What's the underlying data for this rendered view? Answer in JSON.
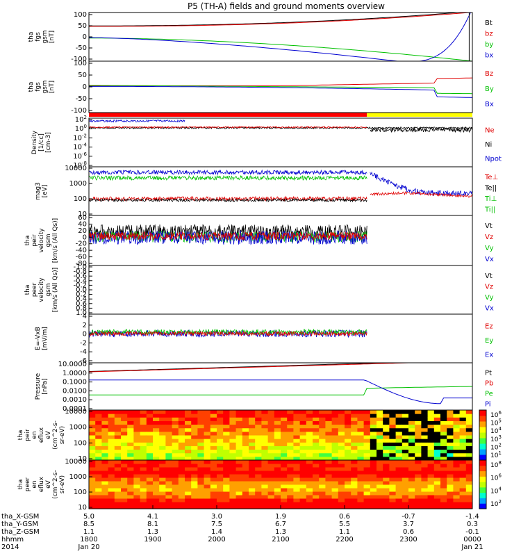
{
  "chart_data": {
    "type": "line",
    "title": "P5 (TH-A) fields and ground moments overview",
    "x_range": [
      "2014-01-20 18:00",
      "2014-01-21 00:00"
    ],
    "panels": [
      {
        "ylabel_lines": [
          "tha",
          "fgs",
          "gsm",
          "[nT]"
        ],
        "yticks": [
          -100,
          -50,
          0,
          50,
          100
        ],
        "ylim": [
          -100,
          100
        ],
        "legend": [
          {
            "label": "Bt",
            "color": "#000000"
          },
          {
            "label": "bz",
            "color": "#e00000"
          },
          {
            "label": "by",
            "color": "#00c000"
          },
          {
            "label": "bx",
            "color": "#0000d0"
          }
        ]
      },
      {
        "ylabel_lines": [
          "tha",
          "fgs",
          "gsm",
          "[nT]"
        ],
        "yticks": [
          -100,
          -50,
          0,
          50,
          100
        ],
        "ylim": [
          -120,
          110
        ],
        "legend": [
          {
            "label": "Bz",
            "color": "#e00000"
          },
          {
            "label": "By",
            "color": "#00c000"
          },
          {
            "label": "Bx",
            "color": "#0000d0"
          }
        ]
      },
      {
        "ylabel_lines": [
          "Density",
          "[1/cc]",
          "[cm-3]"
        ],
        "yticks": [
          "10^2",
          "10^0",
          "10^-2",
          "10^-4",
          "10^-6",
          "10^-8"
        ],
        "scale": "log",
        "legend": [
          {
            "label": "Ne",
            "color": "#e00000"
          },
          {
            "label": "Ni",
            "color": "#000000"
          },
          {
            "label": "Npot",
            "color": "#0000d0"
          }
        ]
      },
      {
        "ylabel_lines": [
          "mag3",
          "[eV]"
        ],
        "yticks": [
          "10000",
          "1000",
          "100",
          "10"
        ],
        "scale": "log",
        "legend": [
          {
            "label": "Te⊥",
            "color": "#e00000"
          },
          {
            "label": "Te||",
            "color": "#000000"
          },
          {
            "label": "Ti⊥",
            "color": "#00c000"
          },
          {
            "label": "Ti||",
            "color": "#00c000"
          }
        ]
      },
      {
        "ylabel_lines": [
          "tha",
          "peir",
          "velocity",
          "gsm",
          "[km/s (All Qs)]"
        ],
        "yticks": [
          -80,
          -60,
          -40,
          -20,
          0,
          20,
          40,
          60
        ],
        "ylim": [
          -80,
          60
        ],
        "legend": [
          {
            "label": "Vt",
            "color": "#000000"
          },
          {
            "label": "Vz",
            "color": "#e00000"
          },
          {
            "label": "Vy",
            "color": "#00c000"
          },
          {
            "label": "Vx",
            "color": "#0000d0"
          }
        ]
      },
      {
        "ylabel_lines": [
          "tha",
          "peer",
          "velocity",
          "gsm",
          "[km/s (All Qs)]"
        ],
        "yticks": [
          "-1.0",
          "-0.8",
          "-0.6",
          "-0.4",
          "-0.2",
          "0.0",
          "0.2",
          "0.4",
          "0.6",
          "0.8",
          "1.0"
        ],
        "ylim": [
          -1,
          1
        ],
        "legend": [
          {
            "label": "Vt",
            "color": "#000000"
          },
          {
            "label": "Vz",
            "color": "#e00000"
          },
          {
            "label": "Vy",
            "color": "#00c000"
          },
          {
            "label": "Vx",
            "color": "#0000d0"
          }
        ]
      },
      {
        "ylabel_lines": [
          "E=-VxB",
          "[mV/m]"
        ],
        "yticks": [
          -6,
          -4,
          -2,
          0,
          2,
          4
        ],
        "ylim": [
          -6,
          4
        ],
        "legend": [
          {
            "label": "Ez",
            "color": "#e00000"
          },
          {
            "label": "Ey",
            "color": "#00c000"
          },
          {
            "label": "Ex",
            "color": "#0000d0"
          }
        ]
      },
      {
        "ylabel_lines": [
          "Pressure",
          "[nPa]"
        ],
        "yticks": [
          "10.0000",
          "1.0000",
          "0.1000",
          "0.0100",
          "0.0010",
          "0.0001"
        ],
        "scale": "log",
        "legend": [
          {
            "label": "Pt",
            "color": "#000000"
          },
          {
            "label": "Pb",
            "color": "#e00000"
          },
          {
            "label": "Pe",
            "color": "#00c000"
          },
          {
            "label": "Pi",
            "color": "#0000d0"
          }
        ]
      },
      {
        "ylabel_lines": [
          "tha",
          "peir",
          "en",
          "eflux",
          "eV",
          "(cm^2-s-",
          "sr-eV)"
        ],
        "yticks": [
          "10000",
          "1000",
          "100",
          "10"
        ],
        "colorbar_ticks": [
          "10^6",
          "10^5",
          "10^4",
          "10^3",
          "10^2",
          "10^1"
        ]
      },
      {
        "ylabel_lines": [
          "tha",
          "peer",
          "en",
          "eflux",
          "eV",
          "(cm^2-s-",
          "sr-eV)"
        ],
        "yticks": [
          "10000",
          "1000",
          "100",
          "10"
        ],
        "colorbar_ticks": [
          "10^8",
          "10^6",
          "10^4",
          "10^2"
        ]
      }
    ],
    "x_axis_labels": {
      "rows": [
        {
          "label": "tha_X-GSM",
          "values": [
            "5.0",
            "4.1",
            "3.0",
            "1.9",
            "0.6",
            "-0.7",
            "-1.4"
          ]
        },
        {
          "label": "tha_Y-GSM",
          "values": [
            "8.5",
            "8.1",
            "7.5",
            "6.7",
            "5.5",
            "3.7",
            "0.3"
          ]
        },
        {
          "label": "tha_Z-GSM",
          "values": [
            "1.1",
            "1.3",
            "1.4",
            "1.3",
            "1.1",
            "0.6",
            "-0.1"
          ]
        },
        {
          "label": "hhmm",
          "values": [
            "1800",
            "1900",
            "2000",
            "2100",
            "2200",
            "2300",
            "0000"
          ]
        },
        {
          "label": "2014",
          "values": [
            "Jan 20",
            "",
            "",
            "",
            "",
            "",
            "Jan 21"
          ]
        }
      ]
    }
  }
}
